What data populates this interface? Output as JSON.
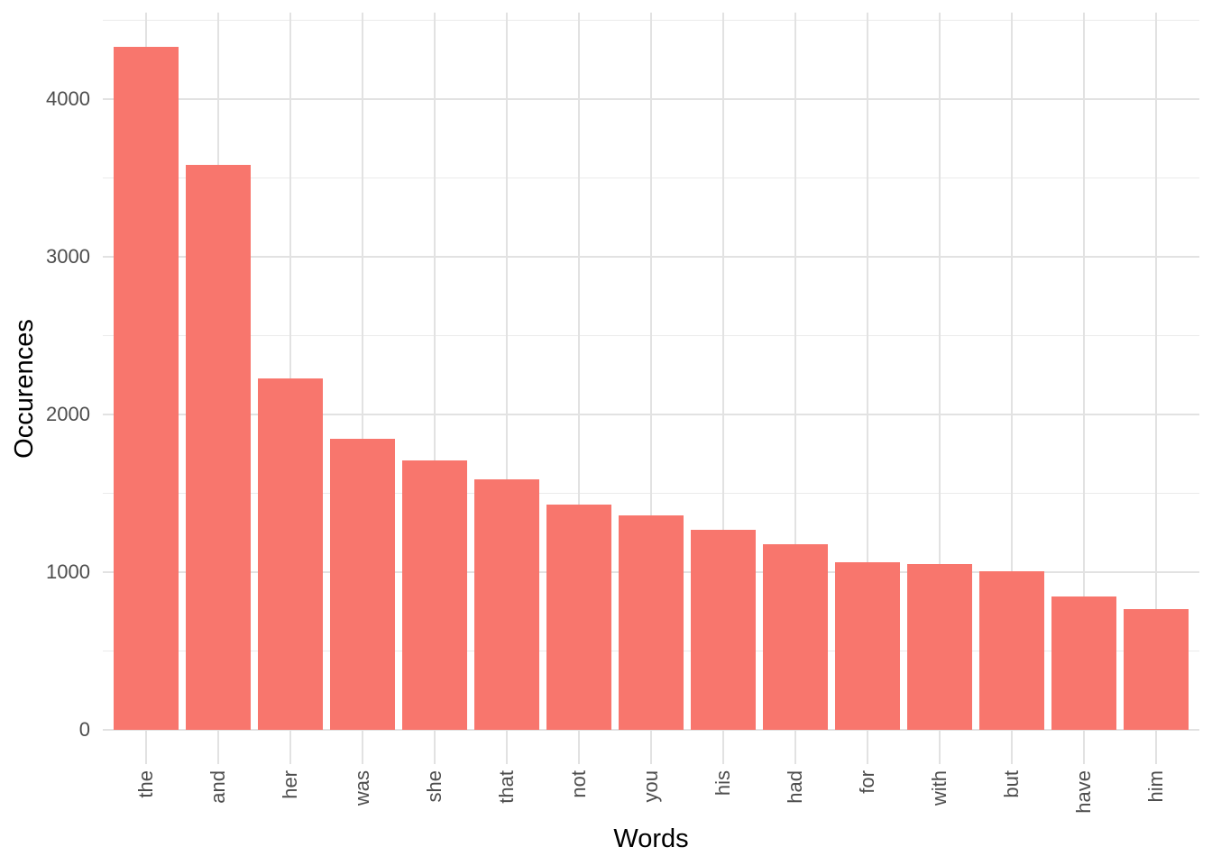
{
  "chart_data": {
    "type": "bar",
    "title": "",
    "xlabel": "Words",
    "ylabel": "Occurences",
    "categories": [
      "the",
      "and",
      "her",
      "was",
      "she",
      "that",
      "not",
      "you",
      "his",
      "had",
      "for",
      "with",
      "but",
      "have",
      "him"
    ],
    "values": [
      4330,
      3585,
      2230,
      1845,
      1710,
      1590,
      1430,
      1360,
      1270,
      1180,
      1065,
      1050,
      1005,
      845,
      765
    ],
    "ylim": [
      0,
      4550
    ],
    "yticks": [
      0,
      1000,
      2000,
      3000,
      4000
    ],
    "yticks_minor": [
      500,
      1500,
      2500,
      3500,
      4500
    ],
    "x_tick_rotation_deg": -90,
    "legend_position": "none",
    "grid": "horizontal major+minor, vertical per category",
    "colors": {
      "bar_fill": "#F8766D",
      "grid_major": "#E2E2E2",
      "grid_minor": "#EBEBEB",
      "axis_text": "#4D4D4D",
      "axis_title": "#000000",
      "background": "#FFFFFF"
    }
  }
}
